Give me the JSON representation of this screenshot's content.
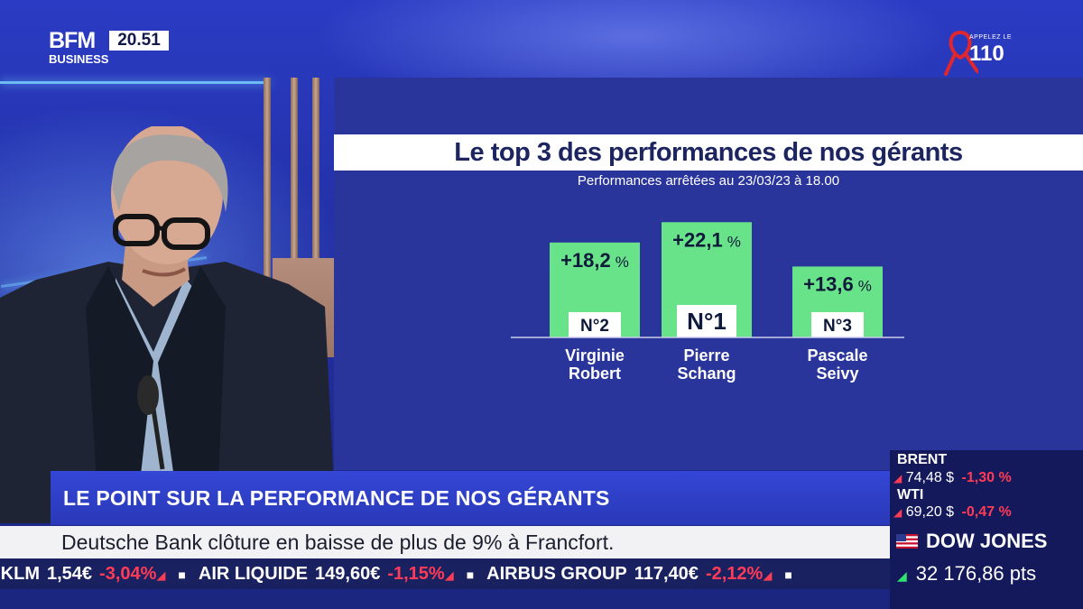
{
  "broadcast": {
    "channel_logo_top": "BFM",
    "channel_logo_bottom": "BUSINESS",
    "clock": "20.51",
    "help_logo_small": "APPELEZ LE",
    "help_logo_number": "110"
  },
  "graphic": {
    "title": "Le top 3 des performances de nos gérants",
    "subtitle": "Performances arrêtées au 23/03/23 à 18.00"
  },
  "chart_data": {
    "type": "bar",
    "categories": [
      "Virginie Robert",
      "Pierre Schang",
      "Pascale Seivy"
    ],
    "values": [
      18.2,
      22.1,
      13.6
    ],
    "value_labels": [
      "+18,2",
      "+22,1",
      "+13,6"
    ],
    "unit": "%",
    "ranks": [
      "N°2",
      "N°1",
      "N°3"
    ],
    "name_lines": [
      [
        "Virginie",
        "Robert"
      ],
      [
        "Pierre",
        "Schang"
      ],
      [
        "Pascale",
        "Seivy"
      ]
    ],
    "colors": {
      "bar": "#69e389",
      "text": "#0d1a3a"
    }
  },
  "banners": {
    "headline": "LE POINT SUR LA PERFORMANCE DE NOS GÉRANTS",
    "news": "Deutsche Bank clôture en baisse de plus de 9% à Francfort.",
    "ticker": [
      {
        "name": "-KLM",
        "price": "1,54€",
        "change": "-3,04%"
      },
      {
        "name": "AIR LIQUIDE",
        "price": "149,60€",
        "change": "-1,15%"
      },
      {
        "name": "AIRBUS GROUP",
        "price": "117,40€",
        "change": "-2,12%"
      }
    ]
  },
  "market": {
    "brent": {
      "name": "BRENT",
      "price": "74,48 $",
      "change": "-1,30 %"
    },
    "wti": {
      "name": "WTI",
      "price": "69,20 $",
      "change": "-0,47 %"
    },
    "dow": {
      "name": "DOW JONES",
      "value": "32 176,86 pts"
    },
    "colors": {
      "down": "#ff3b55",
      "up": "#2ee36e"
    }
  }
}
